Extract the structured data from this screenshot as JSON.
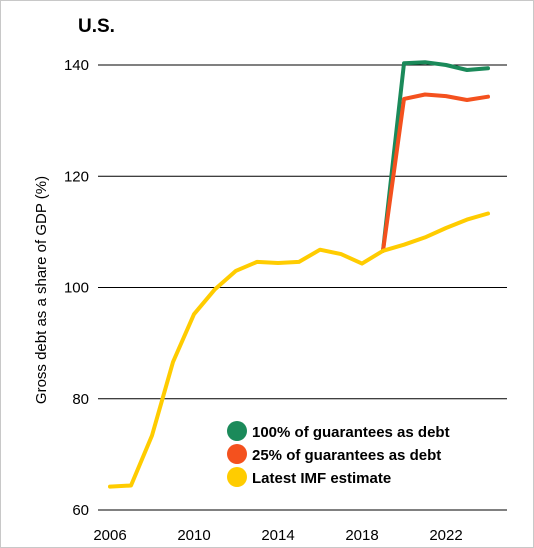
{
  "chart_data": {
    "type": "line",
    "title": "U.S.",
    "ylabel": "Gross debt as a share of GDP (%)",
    "xlabel": "",
    "xlim": [
      2006,
      2024
    ],
    "ylim": [
      60,
      140
    ],
    "x_ticks": [
      2006,
      2010,
      2014,
      2018,
      2022
    ],
    "y_ticks": [
      60,
      80,
      100,
      120,
      140
    ],
    "grid": "horizontal",
    "legend_position": "bottom-right",
    "series": [
      {
        "name": "100% of guarantees as debt",
        "color": "#1b8a5a",
        "x": [
          2019,
          2020,
          2021,
          2022,
          2023,
          2024
        ],
        "values": [
          106.6,
          140.3,
          140.5,
          140.0,
          139.1,
          139.4
        ]
      },
      {
        "name": "25% of guarantees as debt",
        "color": "#f4511e",
        "x": [
          2019,
          2020,
          2021,
          2022,
          2023,
          2024
        ],
        "values": [
          106.6,
          133.9,
          134.7,
          134.4,
          133.7,
          134.3
        ]
      },
      {
        "name": "Latest IMF estimate",
        "color": "#ffcc00",
        "x": [
          2006,
          2007,
          2008,
          2009,
          2010,
          2011,
          2012,
          2013,
          2014,
          2015,
          2016,
          2017,
          2018,
          2019,
          2020,
          2021,
          2022,
          2023,
          2024
        ],
        "values": [
          64.2,
          64.4,
          73.4,
          86.6,
          95.2,
          99.7,
          103.0,
          104.6,
          104.4,
          104.6,
          106.8,
          106.0,
          104.3,
          106.6,
          107.7,
          109.0,
          110.7,
          112.2,
          113.3
        ]
      }
    ]
  }
}
